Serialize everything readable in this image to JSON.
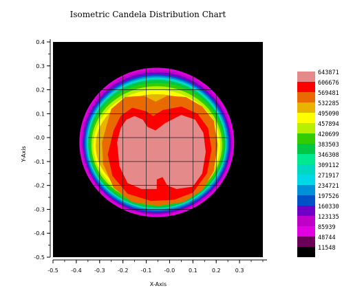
{
  "chart_data": {
    "type": "heatmap",
    "title": "Isometric Candela Distribution Chart",
    "xlabel": "X-Axis",
    "ylabel": "Y-Axis",
    "xlim": [
      -0.5,
      0.4
    ],
    "ylim": [
      -0.5,
      0.4
    ],
    "x_ticks": [
      "-0.5",
      "-0.4",
      "-0.3",
      "-0.2",
      "-0.1",
      "-0.0",
      "0.1",
      "0.2",
      "0.3"
    ],
    "y_ticks": [
      "0.4",
      "0.3",
      "0.2",
      "0.1",
      "-0.0",
      "-0.1",
      "-0.2",
      "-0.3",
      "-0.4",
      "-0.5"
    ],
    "grid": true,
    "legend_position": "right",
    "background_color": "#000000",
    "levels": [
      {
        "value": "643871",
        "color": "#e58a8a"
      },
      {
        "value": "606676",
        "color": "#ff0000"
      },
      {
        "value": "569481",
        "color": "#e86a00"
      },
      {
        "value": "532285",
        "color": "#e8b400"
      },
      {
        "value": "495090",
        "color": "#ffff00"
      },
      {
        "value": "457894",
        "color": "#b8ee00"
      },
      {
        "value": "420699",
        "color": "#33cc00"
      },
      {
        "value": "383503",
        "color": "#00c844"
      },
      {
        "value": "346308",
        "color": "#00e890"
      },
      {
        "value": "309112",
        "color": "#00d8c0"
      },
      {
        "value": "271917",
        "color": "#00d8e8"
      },
      {
        "value": "234721",
        "color": "#0090d8"
      },
      {
        "value": "197526",
        "color": "#0050c8"
      },
      {
        "value": "160330",
        "color": "#7000c8"
      },
      {
        "value": "123135",
        "color": "#c000c8"
      },
      {
        "value": "85939",
        "color": "#e000e0"
      },
      {
        "value": "48744",
        "color": "#6a0058"
      },
      {
        "value": "11548",
        "color": "#000000"
      }
    ],
    "contours": [
      {
        "level": "85939",
        "cx": -0.055,
        "cy": -0.02,
        "rx": 0.332,
        "ry": 0.312
      },
      {
        "level": "123135",
        "cx": -0.055,
        "cy": -0.02,
        "rx": 0.324,
        "ry": 0.304
      },
      {
        "level": "160330",
        "cx": -0.055,
        "cy": -0.022,
        "rx": 0.318,
        "ry": 0.296
      },
      {
        "level": "197526",
        "cx": -0.055,
        "cy": -0.024,
        "rx": 0.312,
        "ry": 0.288
      },
      {
        "level": "234721",
        "cx": -0.055,
        "cy": -0.024,
        "rx": 0.306,
        "ry": 0.282
      },
      {
        "level": "309112",
        "cx": -0.055,
        "cy": -0.024,
        "rx": 0.3,
        "ry": 0.276
      },
      {
        "level": "383503",
        "cx": -0.055,
        "cy": -0.026,
        "rx": 0.294,
        "ry": 0.268
      },
      {
        "level": "420699",
        "cx": -0.055,
        "cy": -0.028,
        "rx": 0.287,
        "ry": 0.257
      },
      {
        "level": "457894",
        "cx": -0.055,
        "cy": -0.03,
        "rx": 0.28,
        "ry": 0.245
      },
      {
        "level": "495090",
        "cx": -0.055,
        "cy": -0.032,
        "rx": 0.272,
        "ry": 0.232
      },
      {
        "level": "532285",
        "cx": -0.055,
        "cy": -0.034,
        "rx": 0.262,
        "ry": 0.216
      }
    ],
    "regions": [
      {
        "level": "569481",
        "points": [
          [
            -0.27,
            0.05
          ],
          [
            -0.25,
            0.12
          ],
          [
            -0.19,
            0.17
          ],
          [
            -0.11,
            0.175
          ],
          [
            -0.06,
            0.15
          ],
          [
            -0.01,
            0.175
          ],
          [
            0.07,
            0.17
          ],
          [
            0.14,
            0.13
          ],
          [
            0.19,
            0.07
          ],
          [
            0.205,
            -0.03
          ],
          [
            0.19,
            -0.14
          ],
          [
            0.14,
            -0.22
          ],
          [
            0.06,
            -0.27
          ],
          [
            -0.05,
            -0.285
          ],
          [
            -0.16,
            -0.27
          ],
          [
            -0.24,
            -0.21
          ],
          [
            -0.285,
            -0.11
          ],
          [
            -0.29,
            -0.02
          ]
        ]
      },
      {
        "level": "606676",
        "points": [
          [
            -0.24,
            0.03
          ],
          [
            -0.21,
            0.09
          ],
          [
            -0.16,
            0.125
          ],
          [
            -0.1,
            0.11
          ],
          [
            -0.07,
            0.09
          ],
          [
            -0.03,
            0.115
          ],
          [
            0.05,
            0.13
          ],
          [
            0.12,
            0.1
          ],
          [
            0.165,
            0.04
          ],
          [
            0.18,
            -0.05
          ],
          [
            0.16,
            -0.15
          ],
          [
            0.1,
            -0.23
          ],
          [
            0.02,
            -0.26
          ],
          [
            -0.08,
            -0.265
          ],
          [
            -0.18,
            -0.235
          ],
          [
            -0.245,
            -0.16
          ],
          [
            -0.265,
            -0.07
          ]
        ]
      },
      {
        "level": "643871",
        "points": [
          [
            -0.225,
            -0.02
          ],
          [
            -0.21,
            0.04
          ],
          [
            -0.185,
            0.075
          ],
          [
            -0.15,
            0.09
          ],
          [
            -0.115,
            0.075
          ],
          [
            -0.095,
            0.045
          ],
          [
            -0.06,
            0.03
          ],
          [
            -0.02,
            0.06
          ],
          [
            0.05,
            0.095
          ],
          [
            0.11,
            0.075
          ],
          [
            0.145,
            0.02
          ],
          [
            0.155,
            -0.06
          ],
          [
            0.14,
            -0.15
          ],
          [
            0.1,
            -0.205
          ],
          [
            0.03,
            -0.215
          ],
          [
            -0.01,
            -0.2
          ],
          [
            -0.03,
            -0.165
          ],
          [
            -0.055,
            -0.175
          ],
          [
            -0.055,
            -0.215
          ],
          [
            -0.12,
            -0.215
          ],
          [
            -0.18,
            -0.19
          ],
          [
            -0.215,
            -0.12
          ]
        ]
      }
    ]
  }
}
